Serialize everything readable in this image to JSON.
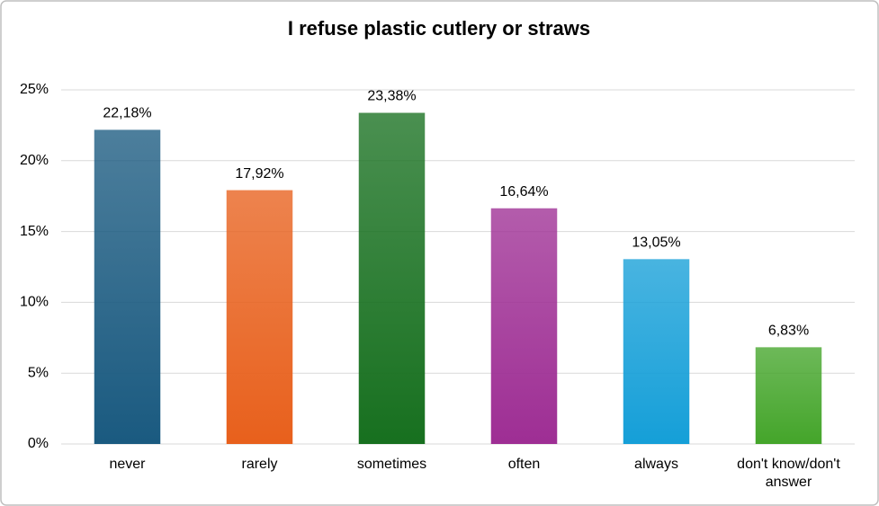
{
  "chart_data": {
    "type": "bar",
    "title": "I refuse plastic cutlery or straws",
    "categories": [
      "never",
      "rarely",
      "sometimes",
      "often",
      "always",
      "don't know/don't answer"
    ],
    "values": [
      22.18,
      17.92,
      23.38,
      16.64,
      13.05,
      6.83
    ],
    "value_labels": [
      "22,18%",
      "17,92%",
      "23,38%",
      "16,64%",
      "13,05%",
      "6,83%"
    ],
    "colors": [
      "#1a5a80",
      "#e8601c",
      "#17701f",
      "#9e2e94",
      "#159fd8",
      "#44a52a"
    ],
    "ylim": [
      0,
      25
    ],
    "yticks": [
      {
        "value": 0,
        "label": "0%"
      },
      {
        "value": 5,
        "label": "5%"
      },
      {
        "value": 10,
        "label": "10%"
      },
      {
        "value": 15,
        "label": "15%"
      },
      {
        "value": 20,
        "label": "20%"
      },
      {
        "value": 25,
        "label": "25%"
      }
    ],
    "grid": true
  }
}
